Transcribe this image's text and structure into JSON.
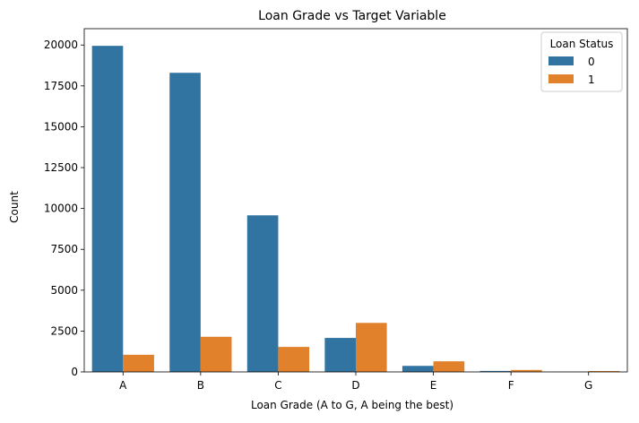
{
  "chart_data": {
    "type": "bar",
    "title": "Loan Grade vs Target Variable",
    "xlabel": "Loan Grade (A to G, A being the best)",
    "ylabel": "Count",
    "categories": [
      "A",
      "B",
      "C",
      "D",
      "E",
      "F",
      "G"
    ],
    "ylim": [
      0,
      21000
    ],
    "yticks": [
      0,
      2500,
      5000,
      7500,
      10000,
      12500,
      15000,
      17500,
      20000
    ],
    "grid": false,
    "legend": {
      "title": "Loan Status",
      "position": "top-right"
    },
    "series": [
      {
        "name": "0",
        "color": "#3274a1",
        "values": [
          19950,
          18300,
          9580,
          2080,
          370,
          60,
          10
        ]
      },
      {
        "name": "1",
        "color": "#e1812c",
        "values": [
          1050,
          2150,
          1530,
          3000,
          650,
          120,
          55
        ]
      }
    ]
  }
}
